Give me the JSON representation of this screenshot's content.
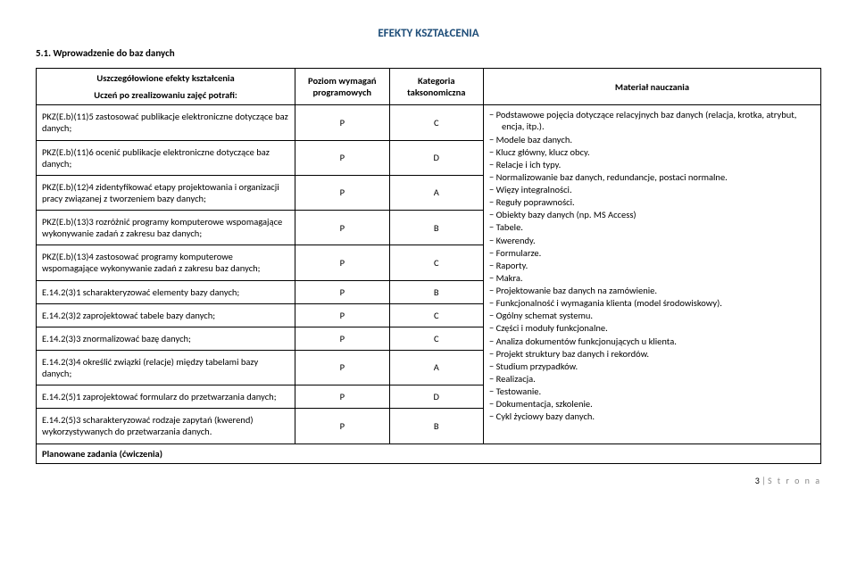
{
  "title": "EFEKTY KSZTAŁCENIA",
  "section": "5.1. Wprowadzenie do baz danych",
  "header": {
    "effects_top": "Uszczegółowione efekty kształcenia",
    "effects_bot": "Uczeń po zrealizowaniu zajęć potrafi:",
    "level": "Poziom wymagań programowych",
    "category": "Kategoria taksonomiczna",
    "material": "Materiał nauczania"
  },
  "rows": [
    {
      "effect": "PKZ(E.b)(11)5 zastosować publikacje elektroniczne dotyczące baz danych;",
      "level": "P",
      "cat": "C"
    },
    {
      "effect": "PKZ(E.b)(11)6 ocenić publikacje elektroniczne dotyczące baz danych;",
      "level": "P",
      "cat": "D"
    },
    {
      "effect": "PKZ(E.b)(12)4 zidentyfikować etapy projektowania i organizacji pracy związanej z tworzeniem bazy danych;",
      "level": "P",
      "cat": "A"
    },
    {
      "effect": "PKZ(E.b)(13)3 rozróżnić programy komputerowe wspomagające wykonywanie zadań z zakresu baz danych;",
      "level": "P",
      "cat": "B"
    },
    {
      "effect": "PKZ(E.b)(13)4 zastosować programy komputerowe wspomagające wykonywanie zadań z zakresu baz danych;",
      "level": "P",
      "cat": "C"
    },
    {
      "effect": "E.14.2(3)1 scharakteryzować elementy bazy danych;",
      "level": "P",
      "cat": "B"
    },
    {
      "effect": "E.14.2(3)2 zaprojektować tabele bazy danych;",
      "level": "P",
      "cat": "C"
    },
    {
      "effect": "E.14.2(3)3 znormalizować bazę danych;",
      "level": "P",
      "cat": "C"
    },
    {
      "effect": "E.14.2(3)4 określić związki (relacje) między tabelami bazy danych;",
      "level": "P",
      "cat": "A"
    },
    {
      "effect": "E.14.2(5)1 zaprojektować formularz do przetwarzania danych;",
      "level": "P",
      "cat": "D"
    },
    {
      "effect": "E.14.2(5)3 scharakteryzować rodzaje zapytań (kwerend) wykorzystywanych do przetwarzania danych.",
      "level": "P",
      "cat": "B"
    }
  ],
  "material": [
    "Podstawowe pojęcia dotyczące relacyjnych baz danych (relacja, krotka, atrybut, encja, itp.).",
    "Modele baz danych.",
    "Klucz główny, klucz obcy.",
    "Relacje i ich typy.",
    "Normalizowanie baz danych, redundancje, postaci normalne.",
    "Więzy integralności.",
    "Reguły poprawności.",
    "Obiekty bazy danych (np. MS Access)",
    "Tabele.",
    "Kwerendy.",
    "Formularze.",
    "Raporty.",
    "Makra.",
    "Projektowanie baz danych na zamówienie.",
    "Funkcjonalność i wymagania klienta (model środowiskowy).",
    "Ogólny schemat systemu.",
    "Części i moduły funkcjonalne.",
    "Analiza dokumentów funkcjonujących u klienta.",
    "Projekt struktury baz danych i rekordów.",
    "Studium przypadków.",
    "Realizacja.",
    "Testowanie.",
    "Dokumentacja, szkolenie.",
    "Cykl życiowy bazy danych."
  ],
  "planned": "Planowane zadania (ćwiczenia)",
  "page_number": "3",
  "page_word": "S t r o n a"
}
